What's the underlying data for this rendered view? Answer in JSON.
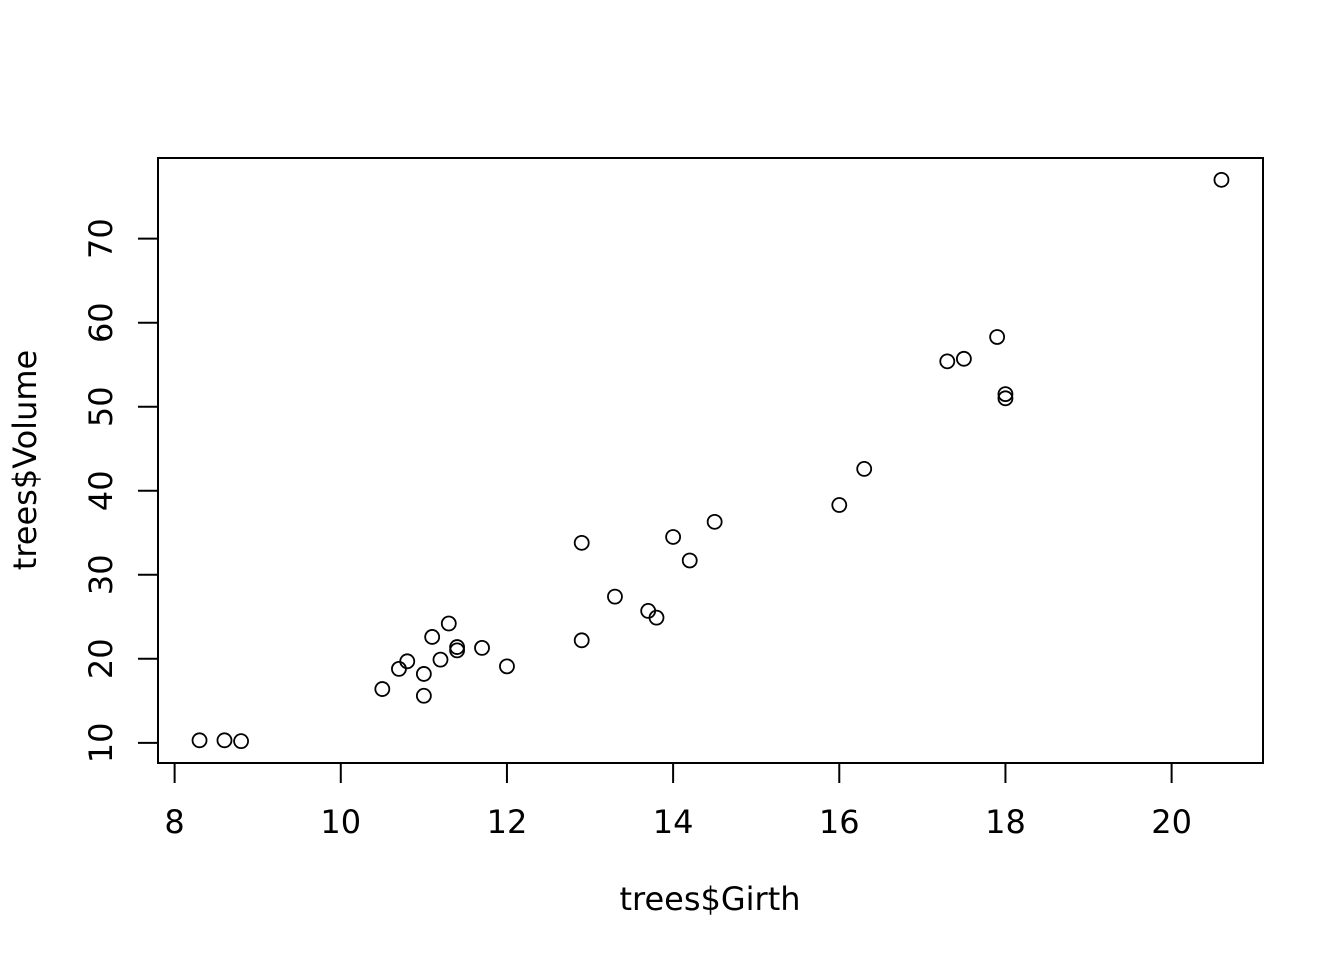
{
  "chart_data": {
    "type": "scatter",
    "title": "",
    "xlabel": "trees$Girth",
    "ylabel": "trees$Volume",
    "xlim": [
      7.8,
      21.1
    ],
    "ylim": [
      7.6,
      79.6
    ],
    "x_ticks": [
      8,
      10,
      12,
      14,
      16,
      18,
      20
    ],
    "y_ticks": [
      10,
      20,
      30,
      40,
      50,
      60,
      70
    ],
    "grid": false,
    "legend": "none",
    "marker": "open-circle",
    "colors": {
      "points": "#000000",
      "frame": "#000000",
      "background": "#ffffff"
    },
    "series": [
      {
        "x": [
          8.3,
          8.6,
          8.8,
          10.5,
          10.7,
          10.8,
          11.0,
          11.0,
          11.1,
          11.2,
          11.3,
          11.4,
          11.4,
          11.7,
          12.0,
          12.9,
          12.9,
          13.3,
          13.7,
          13.8,
          14.0,
          14.2,
          14.5,
          16.0,
          16.3,
          17.3,
          17.5,
          17.9,
          18.0,
          18.0,
          20.6
        ],
        "y": [
          10.3,
          10.3,
          10.2,
          16.4,
          18.8,
          19.7,
          15.6,
          18.2,
          22.6,
          19.9,
          24.2,
          21.0,
          21.4,
          21.3,
          19.1,
          22.2,
          33.8,
          27.4,
          25.7,
          24.9,
          34.5,
          31.7,
          36.3,
          38.3,
          42.6,
          55.4,
          55.7,
          58.3,
          51.5,
          51.0,
          77.0
        ]
      }
    ]
  }
}
